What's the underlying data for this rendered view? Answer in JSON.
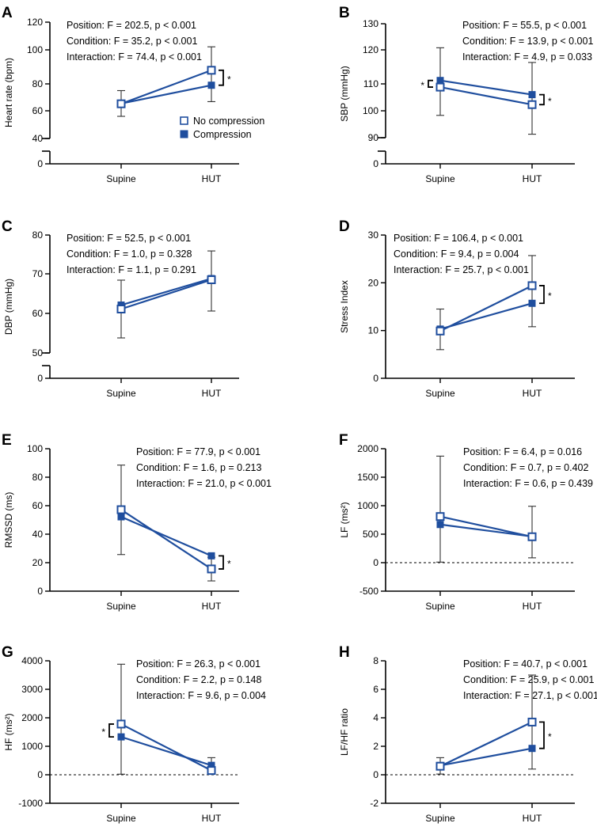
{
  "colors": {
    "series": "#1f4e9e",
    "axis": "#000000"
  },
  "legend": {
    "open_label": "No compression",
    "filled_label": "Compression"
  },
  "chart_data": [
    {
      "panel": "A",
      "type": "line",
      "ylabel": "Heart rate (bpm)",
      "categories": [
        "Supine",
        "HUT"
      ],
      "yticks": [
        0,
        40,
        60,
        80,
        100,
        120
      ],
      "broken_axis": true,
      "stats": [
        "Position: F = 202.5, p < 0.001",
        "Condition: F = 35.2, p < 0.001",
        "Interaction: F = 74.4, p < 0.001"
      ],
      "series": [
        {
          "name": "No compression",
          "marker": "open",
          "values": [
            65.2,
            88
          ],
          "err_low": [
            56,
            66.8
          ],
          "err_high": [
            75,
            102.2
          ]
        },
        {
          "name": "Compression",
          "marker": "filled",
          "values": [
            65.4,
            79
          ]
        }
      ],
      "significance": [
        {
          "category": "HUT",
          "label": "*",
          "side": "right"
        }
      ],
      "legend_shown": true
    },
    {
      "panel": "B",
      "type": "line",
      "ylabel": "SBP (mmHg)",
      "categories": [
        "Supine",
        "HUT"
      ],
      "yticks": [
        0,
        90,
        100,
        110,
        120,
        130
      ],
      "broken_axis": true,
      "stats": [
        "Position: F = 55.5, p < 0.001",
        "Condition: F = 13.9, p < 0.001",
        "Interaction: F = 4.9, p = 0.033"
      ],
      "series": [
        {
          "name": "No compression",
          "marker": "open",
          "values": [
            108.8,
            102.3
          ],
          "err_low": [
            98.3,
            91.3
          ],
          "err_high": [
            120.8,
            116.3
          ]
        },
        {
          "name": "Compression",
          "marker": "filled",
          "values": [
            111,
            106
          ]
        }
      ],
      "significance": [
        {
          "category": "Supine",
          "label": "*",
          "side": "left"
        },
        {
          "category": "HUT",
          "label": "*",
          "side": "right"
        }
      ]
    },
    {
      "panel": "C",
      "type": "line",
      "ylabel": "DBP (mmHg)",
      "categories": [
        "Supine",
        "HUT"
      ],
      "yticks": [
        0,
        50,
        60,
        70,
        80
      ],
      "broken_axis": true,
      "stats": [
        "Position: F = 52.5, p < 0.001",
        "Condition: F = 1.0, p = 0.328",
        "Interaction: F = 1.1, p = 0.291"
      ],
      "series": [
        {
          "name": "No compression",
          "marker": "open",
          "values": [
            61.1,
            68.5
          ],
          "err_low": [
            53.8,
            60.6
          ],
          "err_high": [
            68.4,
            75.9
          ]
        },
        {
          "name": "Compression",
          "marker": "filled",
          "values": [
            62.1,
            68.8
          ]
        }
      ],
      "significance": []
    },
    {
      "panel": "D",
      "type": "line",
      "ylabel": "Stress Index",
      "categories": [
        "Supine",
        "HUT"
      ],
      "yticks": [
        0,
        10,
        20,
        30
      ],
      "stats": [
        "Position: F = 106.4, p < 0.001",
        "Condition: F = 9.4, p = 0.004",
        "Interaction: F = 25.7, p < 0.001"
      ],
      "series": [
        {
          "name": "No compression",
          "marker": "open",
          "values": [
            9.9,
            19.4
          ],
          "err_low": [
            6,
            10.8
          ],
          "err_high": [
            14.5,
            25.7
          ]
        },
        {
          "name": "Compression",
          "marker": "filled",
          "values": [
            10.3,
            15.7
          ]
        }
      ],
      "significance": [
        {
          "category": "HUT",
          "label": "*",
          "side": "right"
        }
      ]
    },
    {
      "panel": "E",
      "type": "line",
      "ylabel": "RMSSD (ms)",
      "categories": [
        "Supine",
        "HUT"
      ],
      "yticks": [
        0,
        20,
        40,
        60,
        80,
        100
      ],
      "stats": [
        "Position: F = 77.9, p < 0.001",
        "Condition: F = 1.6, p = 0.213",
        "Interaction: F = 21.0, p < 0.001"
      ],
      "series": [
        {
          "name": "No compression",
          "marker": "open",
          "values": [
            57.2,
            15.6
          ],
          "err_low": [
            25.7,
            7.2
          ],
          "err_high": [
            88.5,
            23.8
          ]
        },
        {
          "name": "Compression",
          "marker": "filled",
          "values": [
            52.2,
            24.8
          ]
        }
      ],
      "significance": [
        {
          "category": "HUT",
          "label": "*",
          "side": "right"
        }
      ]
    },
    {
      "panel": "F",
      "type": "line",
      "ylabel": "LF (ms²)",
      "categories": [
        "Supine",
        "HUT"
      ],
      "yticks": [
        -500,
        0,
        500,
        1000,
        1500,
        2000
      ],
      "zero_line": true,
      "stats": [
        "Position: F = 6.4, p = 0.016",
        "Condition: F = 0.7, p = 0.402",
        "Interaction: F = 0.6, p = 0.439"
      ],
      "series": [
        {
          "name": "No compression",
          "marker": "open",
          "values": [
            810,
            455
          ],
          "err_low": [
            10,
            85
          ],
          "err_high": [
            1870,
            990
          ]
        },
        {
          "name": "Compression",
          "marker": "filled",
          "values": [
            670,
            460
          ]
        }
      ],
      "significance": []
    },
    {
      "panel": "G",
      "type": "line",
      "ylabel": "HF (ms²)",
      "categories": [
        "Supine",
        "HUT"
      ],
      "yticks": [
        -1000,
        0,
        1000,
        2000,
        3000,
        4000
      ],
      "zero_line": true,
      "stats": [
        "Position: F = 26.3, p < 0.001",
        "Condition: F = 2.2, p = 0.148",
        "Interaction: F = 9.6, p = 0.004"
      ],
      "series": [
        {
          "name": "No compression",
          "marker": "open",
          "values": [
            1780,
            150
          ],
          "err_low": [
            20,
            20
          ],
          "err_high": [
            3880,
            600
          ]
        },
        {
          "name": "Compression",
          "marker": "filled",
          "values": [
            1330,
            330
          ]
        }
      ],
      "significance": [
        {
          "category": "Supine",
          "label": "*",
          "side": "left"
        }
      ]
    },
    {
      "panel": "H",
      "type": "line",
      "ylabel": "LF/HF ratio",
      "categories": [
        "Supine",
        "HUT"
      ],
      "yticks": [
        -2,
        0,
        2,
        4,
        6,
        8
      ],
      "zero_line": true,
      "stats": [
        "Position: F = 40.7, p < 0.001",
        "Condition: F = 25.9, p < 0.001",
        "Interaction: F = 27.1, p < 0.001"
      ],
      "series": [
        {
          "name": "No compression",
          "marker": "open",
          "values": [
            0.6,
            3.7
          ],
          "err_low": [
            0.05,
            0.4
          ],
          "err_high": [
            1.2,
            7
          ]
        },
        {
          "name": "Compression",
          "marker": "filled",
          "values": [
            0.65,
            1.85
          ]
        }
      ],
      "significance": [
        {
          "category": "HUT",
          "label": "*",
          "side": "right"
        }
      ]
    }
  ]
}
